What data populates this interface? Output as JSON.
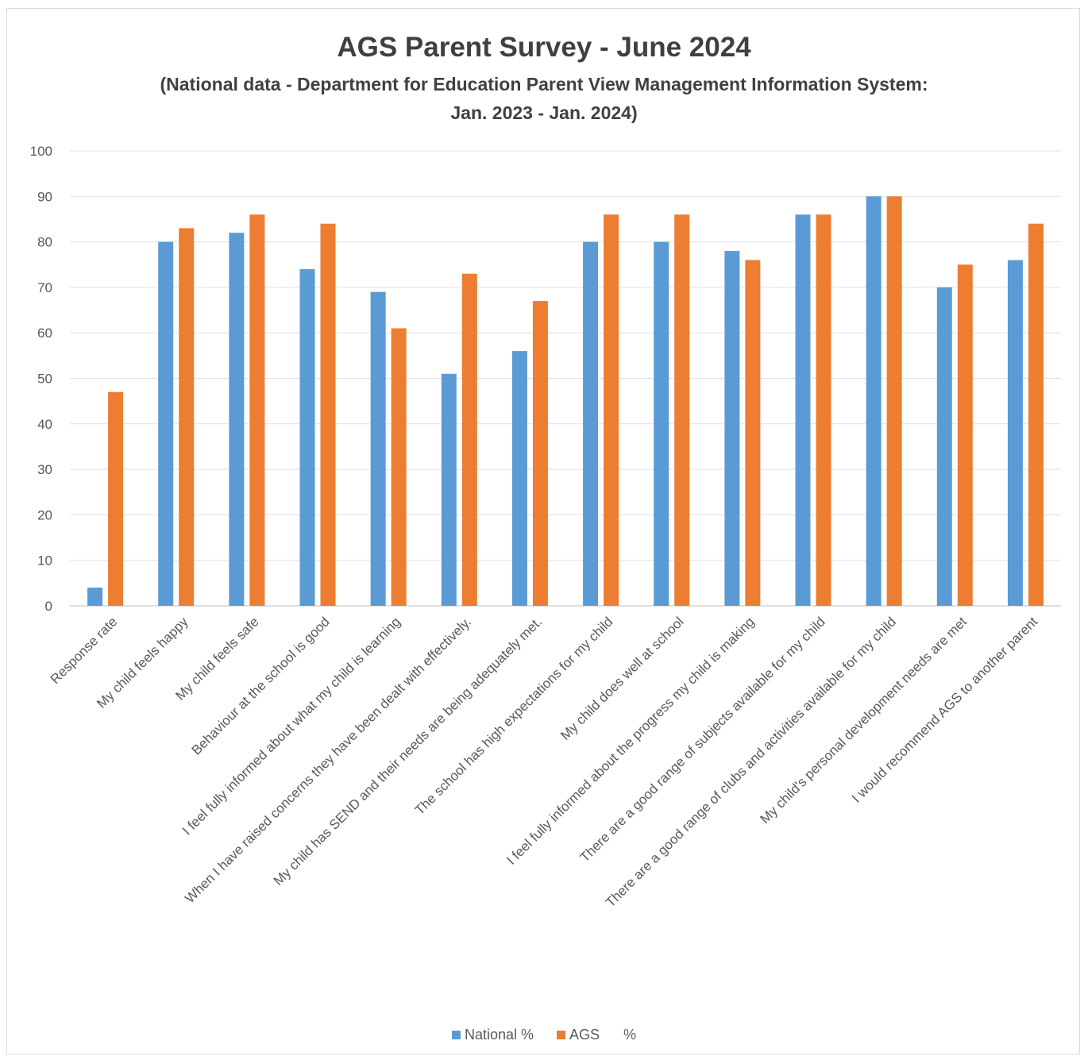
{
  "chart_data": {
    "type": "bar",
    "title": "AGS Parent Survey - June 2024",
    "subtitle": "(National data - Department for Education Parent View Management Information System: Jan. 2023 - Jan. 2024)",
    "xlabel": "",
    "ylabel": "",
    "ylim": [
      0,
      100
    ],
    "yticks": [
      0,
      10,
      20,
      30,
      40,
      50,
      60,
      70,
      80,
      90,
      100
    ],
    "grid": true,
    "legend_position": "bottom",
    "categories": [
      "Response rate",
      "My child feels happy",
      "My child feels safe",
      "Behaviour at the school is good",
      "I feel fully informed about what my child is learning",
      "When I have raised concerns they have been dealt with effectively.",
      "My child has SEND and their needs are being adequately met.",
      "The school has high expectations for my child",
      "My child does well at school",
      "I feel fully informed about the progress my child is making",
      "There are a good range of subjects available for my child",
      "There are a good range of clubs and activities available for my child",
      "My child's personal development needs are met",
      "I would recommend AGS to another parent"
    ],
    "series": [
      {
        "name": "National %",
        "color": "#5b9bd5",
        "values": [
          4,
          80,
          82,
          74,
          69,
          51,
          56,
          80,
          80,
          78,
          86,
          90,
          70,
          76
        ]
      },
      {
        "name": "AGS      %",
        "color": "#ed7d31",
        "values": [
          47,
          83,
          86,
          84,
          61,
          73,
          67,
          86,
          86,
          76,
          86,
          90,
          75,
          84
        ]
      }
    ]
  }
}
